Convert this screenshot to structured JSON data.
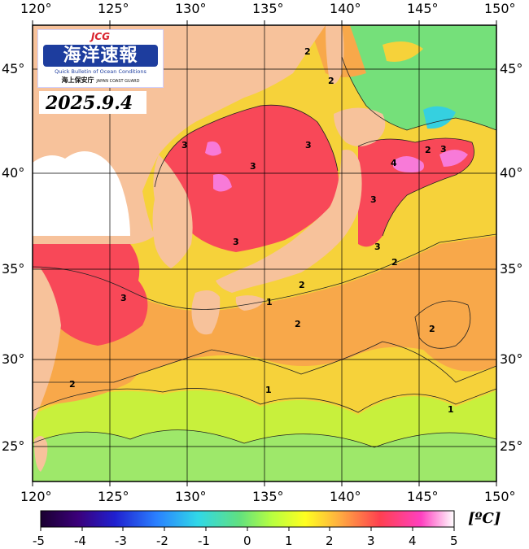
{
  "map": {
    "longitude_labels": [
      "120°",
      "125°",
      "130°",
      "135°",
      "140°",
      "145°",
      "150°"
    ],
    "latitude_labels": [
      "45°",
      "40°",
      "35°",
      "30°",
      "25°"
    ],
    "date": "2025.9.4",
    "logo": {
      "mark": "JCG",
      "title": "海洋速報",
      "subtitle": "Quick Bulletin of Ocean Conditions",
      "agency": "海上保安庁",
      "agency_en": "JAPAN COAST GUARD"
    },
    "contour_labels": [
      "2",
      "2",
      "3",
      "3",
      "3",
      "3",
      "3",
      "3",
      "2",
      "4",
      "3",
      "2",
      "2",
      "1",
      "2",
      "1",
      "2",
      "2",
      "1",
      "3"
    ],
    "colorbar": {
      "ticks": [
        "-5",
        "-4",
        "-3",
        "-2",
        "-1",
        "0",
        "1",
        "2",
        "3",
        "4",
        "5"
      ],
      "unit": "[ºC]",
      "min": -5,
      "max": 5,
      "colors": [
        "#1a0030",
        "#3b007a",
        "#2020d0",
        "#2a80ff",
        "#30d8e8",
        "#60e080",
        "#b8ff40",
        "#ffff20",
        "#ffb040",
        "#ff4050",
        "#ff40c0",
        "#ffffff"
      ]
    },
    "colors": {
      "land": "#f7c29b",
      "anomaly_0": "#75e07a",
      "anomaly_1": "#c8f03c",
      "anomaly_2": "#f8a84a",
      "anomaly_3": "#f84858",
      "anomaly_4": "#f87ad8"
    }
  }
}
